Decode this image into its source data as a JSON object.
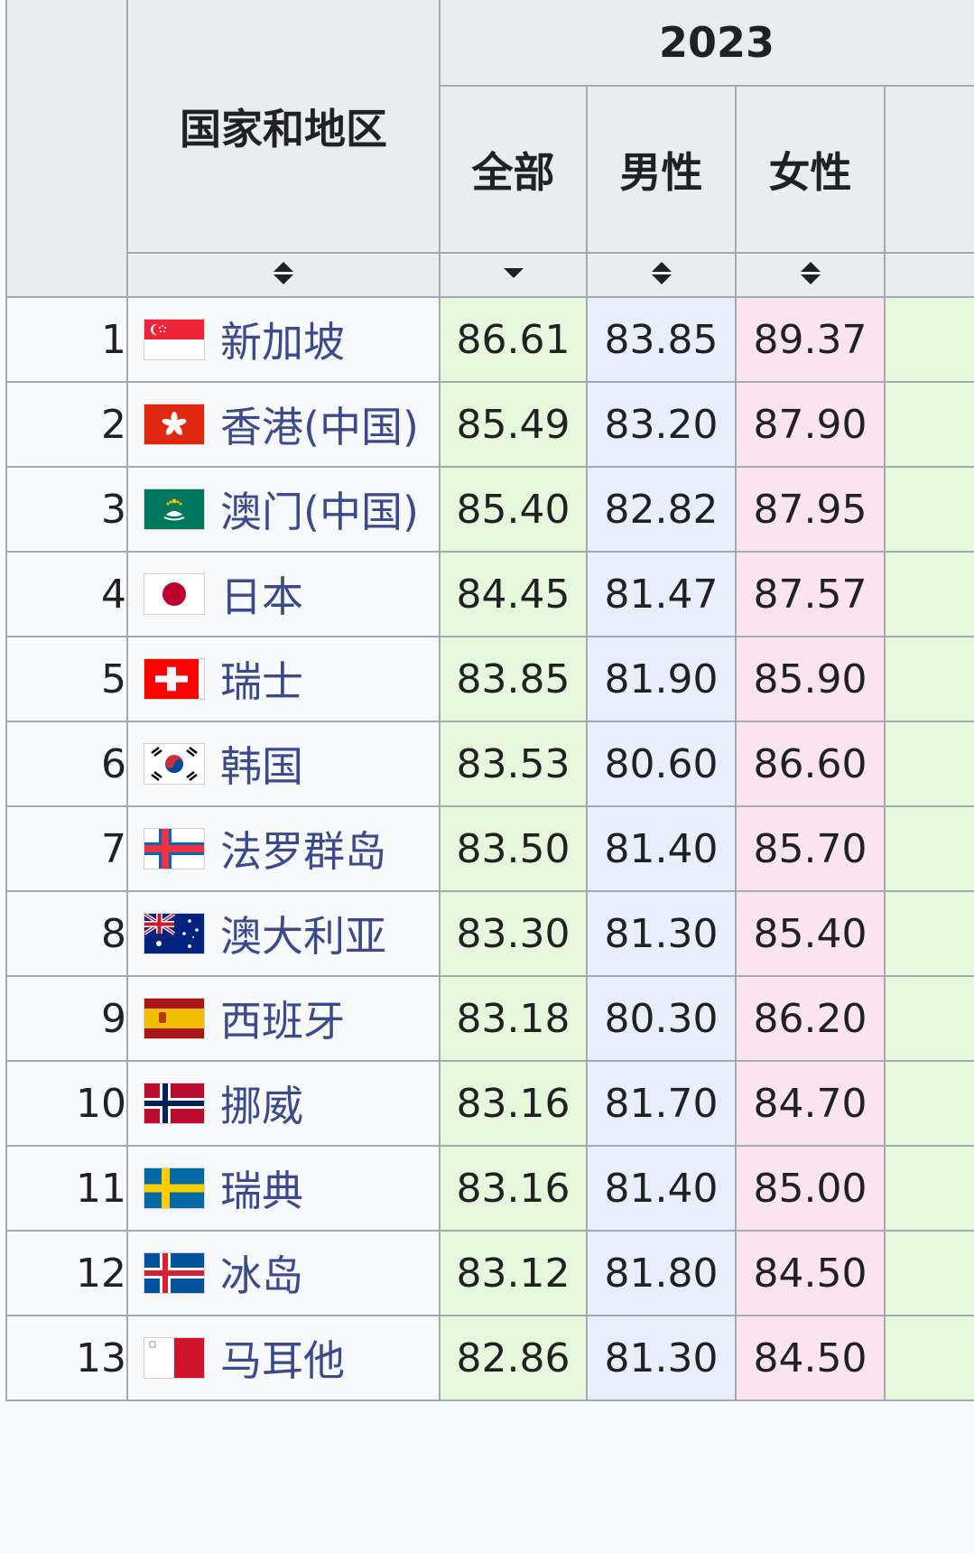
{
  "header": {
    "country_col": "国家和地区",
    "year": "2023",
    "columns": [
      "全部",
      "男性",
      "女性"
    ]
  },
  "colors": {
    "all_col": "#e6f7dc",
    "male_col": "#e9effa",
    "female_col": "#fbe4ee",
    "link": "#3a4a8c",
    "border": "#a2a9b1"
  },
  "rows": [
    {
      "rank": "1",
      "name": "新加坡",
      "flag": "singapore-flag-icon",
      "all": "86.61",
      "male": "83.85",
      "female": "89.37"
    },
    {
      "rank": "2",
      "name": "香港(中国)",
      "flag": "hongkong-flag-icon",
      "all": "85.49",
      "male": "83.20",
      "female": "87.90"
    },
    {
      "rank": "3",
      "name": "澳门(中国)",
      "flag": "macau-flag-icon",
      "all": "85.40",
      "male": "82.82",
      "female": "87.95"
    },
    {
      "rank": "4",
      "name": "日本",
      "flag": "japan-flag-icon",
      "all": "84.45",
      "male": "81.47",
      "female": "87.57"
    },
    {
      "rank": "5",
      "name": "瑞士",
      "flag": "switzerland-flag-icon",
      "all": "83.85",
      "male": "81.90",
      "female": "85.90"
    },
    {
      "rank": "6",
      "name": "韩国",
      "flag": "korea-flag-icon",
      "all": "83.53",
      "male": "80.60",
      "female": "86.60"
    },
    {
      "rank": "7",
      "name": "法罗群岛",
      "flag": "faroe-flag-icon",
      "all": "83.50",
      "male": "81.40",
      "female": "85.70"
    },
    {
      "rank": "8",
      "name": "澳大利亚",
      "flag": "australia-flag-icon",
      "all": "83.30",
      "male": "81.30",
      "female": "85.40"
    },
    {
      "rank": "9",
      "name": "西班牙",
      "flag": "spain-flag-icon",
      "all": "83.18",
      "male": "80.30",
      "female": "86.20"
    },
    {
      "rank": "10",
      "name": "挪威",
      "flag": "norway-flag-icon",
      "all": "83.16",
      "male": "81.70",
      "female": "84.70"
    },
    {
      "rank": "11",
      "name": "瑞典",
      "flag": "sweden-flag-icon",
      "all": "83.16",
      "male": "81.40",
      "female": "85.00"
    },
    {
      "rank": "12",
      "name": "冰岛",
      "flag": "iceland-flag-icon",
      "all": "83.12",
      "male": "81.80",
      "female": "84.50"
    },
    {
      "rank": "13",
      "name": "马耳他",
      "flag": "malta-flag-icon",
      "all": "82.86",
      "male": "81.30",
      "female": "84.50"
    }
  ]
}
